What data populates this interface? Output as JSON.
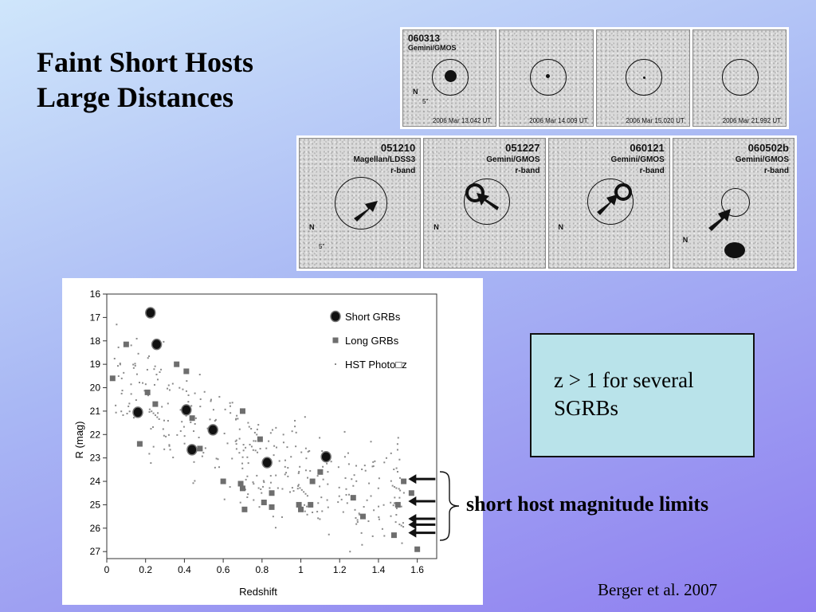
{
  "slide": {
    "title_line1": "Faint Short Hosts",
    "title_line2": "Large Distances",
    "note": "z > 1 for several SGRBs",
    "limits_label": "short host magnitude limits",
    "citation": "Berger et al. 2007"
  },
  "top_strip": {
    "grb_id": "060313",
    "instrument": "Gemini/GMOS",
    "north_label": "N",
    "scale_label": "5\"",
    "panels": [
      {
        "date": "2006 Mar 13.042 UT"
      },
      {
        "date": "2006 Mar 14.009 UT"
      },
      {
        "date": "2006 Mar 15.020 UT"
      },
      {
        "date": "2006 Mar 21.992 UT"
      }
    ]
  },
  "host_panels": [
    {
      "id": "051210",
      "instrument": "Magellan/LDSS3",
      "band": "r-band",
      "north_label": "N",
      "scale_label": "5\""
    },
    {
      "id": "051227",
      "instrument": "Gemini/GMOS",
      "band": "r-band",
      "north_label": "N"
    },
    {
      "id": "060121",
      "instrument": "Gemini/GMOS",
      "band": "r-band",
      "north_label": "N"
    },
    {
      "id": "060502b",
      "instrument": "Gemini/GMOS",
      "band": "r-band",
      "north_label": "N"
    }
  ],
  "chart_data": {
    "type": "scatter",
    "xlabel": "Redshift",
    "ylabel": "R  (mag)",
    "xlim": [
      0,
      1.7
    ],
    "ylim": [
      16,
      27.3
    ],
    "y_inverted": true,
    "x_ticks": [
      "0",
      "0.2",
      "0.4",
      "0.6",
      "0.8",
      "1",
      "1.2",
      "1.4",
      "1.6"
    ],
    "y_ticks": [
      "16",
      "17",
      "18",
      "19",
      "20",
      "21",
      "22",
      "23",
      "24",
      "25",
      "26",
      "27"
    ],
    "legend_position": "top-right",
    "series": [
      {
        "name": "Short GRBs",
        "marker": "large-circle",
        "color": "#000000",
        "points": [
          [
            0.225,
            16.8
          ],
          [
            0.257,
            18.15
          ],
          [
            0.16,
            21.05
          ],
          [
            0.41,
            20.95
          ],
          [
            0.547,
            21.8
          ],
          [
            0.439,
            22.65
          ],
          [
            0.826,
            23.2
          ],
          [
            1.13,
            22.95
          ]
        ]
      },
      {
        "name": "Long GRBs",
        "marker": "square",
        "color": "#6e6e6e",
        "points": [
          [
            0.03,
            19.6
          ],
          [
            0.1,
            18.15
          ],
          [
            0.36,
            19.0
          ],
          [
            0.41,
            19.3
          ],
          [
            0.21,
            20.2
          ],
          [
            0.25,
            20.7
          ],
          [
            0.17,
            22.4
          ],
          [
            0.44,
            21.3
          ],
          [
            0.7,
            21.0
          ],
          [
            0.79,
            22.2
          ],
          [
            0.48,
            22.6
          ],
          [
            0.6,
            24.0
          ],
          [
            0.69,
            24.1
          ],
          [
            0.7,
            24.3
          ],
          [
            0.71,
            25.2
          ],
          [
            0.81,
            24.9
          ],
          [
            0.85,
            24.5
          ],
          [
            0.85,
            25.1
          ],
          [
            0.99,
            25.0
          ],
          [
            1.0,
            25.2
          ],
          [
            1.05,
            25.0
          ],
          [
            1.06,
            24.0
          ],
          [
            1.1,
            23.6
          ],
          [
            1.27,
            24.7
          ],
          [
            1.32,
            25.5
          ],
          [
            1.5,
            25.0
          ],
          [
            1.53,
            24.0
          ],
          [
            1.57,
            24.5
          ],
          [
            1.48,
            26.3
          ],
          [
            1.6,
            26.9
          ]
        ]
      },
      {
        "name": "HST Photo□z",
        "marker": "dot",
        "color": "#8a8a8a"
      }
    ],
    "magnitude_limit_arrows": [
      {
        "x": 1.57,
        "y": 23.9
      },
      {
        "x": 1.57,
        "y": 24.85
      },
      {
        "x": 1.57,
        "y": 25.6
      },
      {
        "x": 1.57,
        "y": 25.85
      },
      {
        "x": 1.57,
        "y": 26.2
      }
    ]
  }
}
